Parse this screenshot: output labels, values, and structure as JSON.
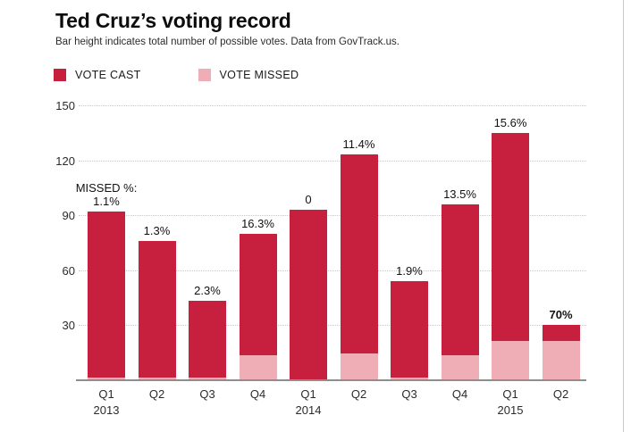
{
  "header": {
    "title": "Ted Cruz’s voting record",
    "subtitle": "Bar height indicates total number of possible votes. Data from GovTrack.us."
  },
  "legend": {
    "items": [
      {
        "label": "VOTE CAST",
        "color": "#c7203f"
      },
      {
        "label": "VOTE MISSED",
        "color": "#efadb5"
      }
    ]
  },
  "colors": {
    "vote_cast": "#c7203f",
    "vote_missed": "#efadb5",
    "gridline": "#c9c9c9",
    "axis": "#8e8e8e",
    "page_border": "#cccccc"
  },
  "chart_data": {
    "type": "bar",
    "stacked": true,
    "title": "Ted Cruz’s voting record",
    "subtitle": "Bar height indicates total number of possible votes. Data from GovTrack.us.",
    "categories": [
      "Q1 2013",
      "Q2 2013",
      "Q3 2013",
      "Q4 2013",
      "Q1 2014",
      "Q2 2014",
      "Q3 2014",
      "Q4 2014",
      "Q1 2015",
      "Q2 2015"
    ],
    "x_ticks": [
      {
        "quarter": "Q1",
        "year": "2013"
      },
      {
        "quarter": "Q2",
        "year": ""
      },
      {
        "quarter": "Q3",
        "year": ""
      },
      {
        "quarter": "Q4",
        "year": ""
      },
      {
        "quarter": "Q1",
        "year": "2014"
      },
      {
        "quarter": "Q2",
        "year": ""
      },
      {
        "quarter": "Q3",
        "year": ""
      },
      {
        "quarter": "Q4",
        "year": ""
      },
      {
        "quarter": "Q1",
        "year": "2015"
      },
      {
        "quarter": "Q2",
        "year": ""
      }
    ],
    "series": [
      {
        "name": "VOTE CAST",
        "color": "#c7203f",
        "values": [
          91,
          75,
          42,
          67,
          93,
          109,
          53,
          83,
          114,
          9
        ]
      },
      {
        "name": "VOTE MISSED",
        "color": "#efadb5",
        "values": [
          1,
          1,
          1,
          13,
          0,
          14,
          1,
          13,
          21,
          21
        ]
      }
    ],
    "totals": [
      92,
      76,
      43,
      80,
      93,
      123,
      54,
      96,
      135,
      30
    ],
    "missed_pct_labels": [
      "1.1%",
      "1.3%",
      "2.3%",
      "16.3%",
      "0",
      "11.4%",
      "1.9%",
      "13.5%",
      "15.6%",
      "70%"
    ],
    "missed_label_prefix_index": 0,
    "missed_label_prefix": "MISSED %:",
    "bold_label_index": 9,
    "y_ticks": [
      150,
      120,
      90,
      60,
      30
    ],
    "ylim": [
      0,
      150
    ],
    "grid": "horizontal-dotted",
    "legend_position": "top-left"
  }
}
